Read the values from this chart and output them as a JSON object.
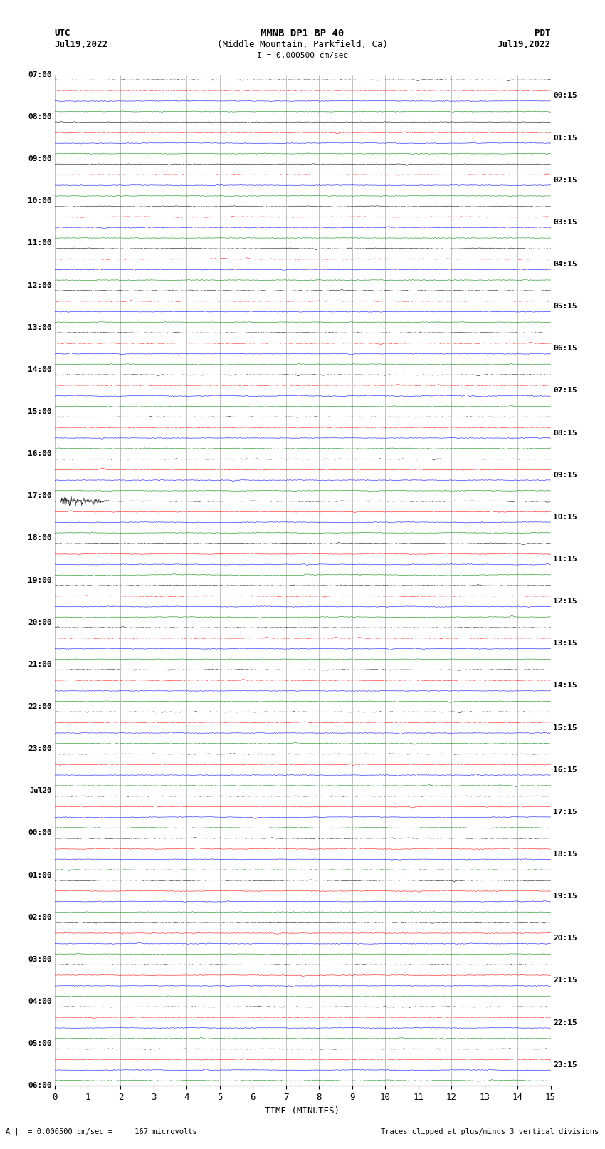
{
  "title_line1": "MMNB DP1 BP 40",
  "title_line2": "(Middle Mountain, Parkfield, Ca)",
  "scale_label": "I = 0.000500 cm/sec",
  "utc_label": "UTC",
  "utc_date": "Jul19,2022",
  "pdt_label": "PDT",
  "pdt_date": "Jul19,2022",
  "xlabel": "TIME (MINUTES)",
  "bottom_left": "A |  = 0.000500 cm/sec =     167 microvolts",
  "bottom_right": "Traces clipped at plus/minus 3 vertical divisions",
  "left_times": [
    "07:00",
    "08:00",
    "09:00",
    "10:00",
    "11:00",
    "12:00",
    "13:00",
    "14:00",
    "15:00",
    "16:00",
    "17:00",
    "18:00",
    "19:00",
    "20:00",
    "21:00",
    "22:00",
    "23:00",
    "Jul20",
    "00:00",
    "01:00",
    "02:00",
    "03:00",
    "04:00",
    "05:00",
    "06:00"
  ],
  "right_times": [
    "00:15",
    "01:15",
    "02:15",
    "03:15",
    "04:15",
    "05:15",
    "06:15",
    "07:15",
    "08:15",
    "09:15",
    "10:15",
    "11:15",
    "12:15",
    "13:15",
    "14:15",
    "15:15",
    "16:15",
    "17:15",
    "18:15",
    "19:15",
    "20:15",
    "21:15",
    "22:15",
    "23:15"
  ],
  "n_rows": 24,
  "traces_per_row": 4,
  "trace_colors": [
    "black",
    "red",
    "blue",
    "green"
  ],
  "background_color": "white",
  "grid_color": "#aaaaaa",
  "fig_width": 8.5,
  "fig_height": 16.13,
  "x_min": 0,
  "x_max": 15,
  "x_ticks": [
    0,
    1,
    2,
    3,
    4,
    5,
    6,
    7,
    8,
    9,
    10,
    11,
    12,
    13,
    14,
    15
  ],
  "earthquake_row": 10,
  "earthquake_trace": 0,
  "earthquake_minute": 0.2,
  "earthquake_row2": 9,
  "earthquake2_trace": 0,
  "earthquake2_minute": 1.3,
  "seed": 42
}
